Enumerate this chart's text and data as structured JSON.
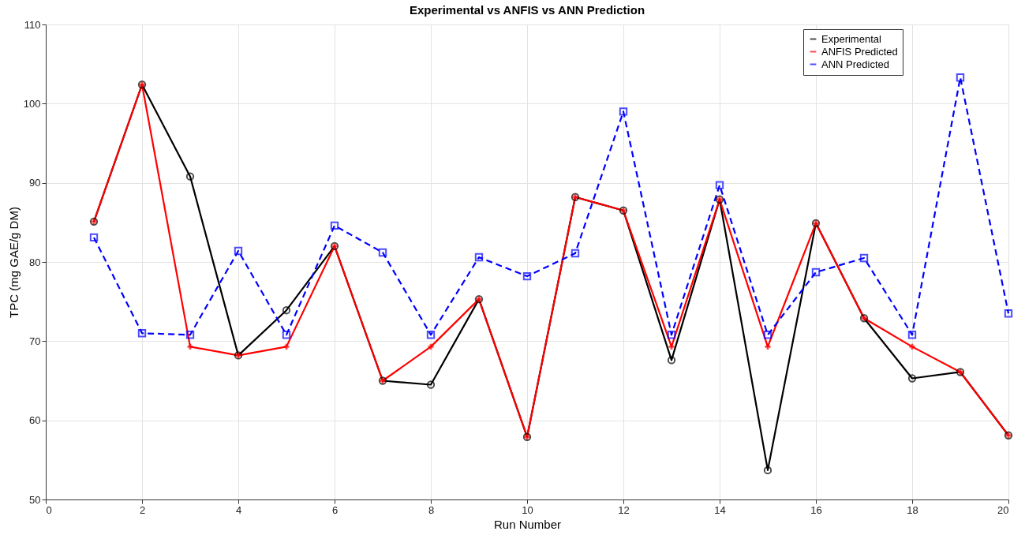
{
  "chart_data": {
    "type": "line",
    "title": "Experimental vs ANFIS vs ANN Prediction",
    "xlabel": "Run Number",
    "ylabel": "TPC (mg GAE/g DM)",
    "x": [
      1,
      2,
      3,
      4,
      5,
      6,
      7,
      8,
      9,
      10,
      11,
      12,
      13,
      14,
      15,
      16,
      17,
      18,
      19,
      20
    ],
    "series": [
      {
        "name": "Experimental",
        "color": "#000000",
        "marker": "circle",
        "line_style": "solid",
        "values": [
          85.1,
          102.4,
          90.8,
          68.2,
          73.9,
          82.0,
          65.0,
          64.5,
          75.3,
          57.9,
          88.2,
          86.5,
          67.6,
          87.9,
          53.7,
          84.9,
          72.9,
          65.3,
          66.1,
          58.1
        ]
      },
      {
        "name": "ANFIS Predicted",
        "color": "#ff0000",
        "marker": "cross",
        "line_style": "solid",
        "values": [
          85.1,
          102.4,
          69.3,
          68.2,
          69.3,
          82.0,
          65.0,
          69.3,
          75.3,
          57.9,
          88.2,
          86.5,
          69.3,
          87.9,
          69.3,
          84.9,
          72.9,
          69.3,
          66.1,
          58.1
        ]
      },
      {
        "name": "ANN Predicted",
        "color": "#0000ff",
        "marker": "square",
        "line_style": "dashed",
        "values": [
          83.1,
          71.0,
          70.8,
          81.4,
          70.8,
          84.6,
          81.2,
          70.8,
          80.6,
          78.2,
          81.1,
          99.0,
          70.8,
          89.7,
          70.8,
          78.7,
          80.5,
          70.8,
          103.3,
          73.5
        ]
      }
    ],
    "xlim": [
      0,
      20
    ],
    "xticks": [
      0,
      2,
      4,
      6,
      8,
      10,
      12,
      14,
      16,
      18,
      20
    ],
    "ylim": [
      50,
      110
    ],
    "yticks": [
      50,
      60,
      70,
      80,
      90,
      100,
      110
    ],
    "grid": true,
    "legend": "top right"
  }
}
